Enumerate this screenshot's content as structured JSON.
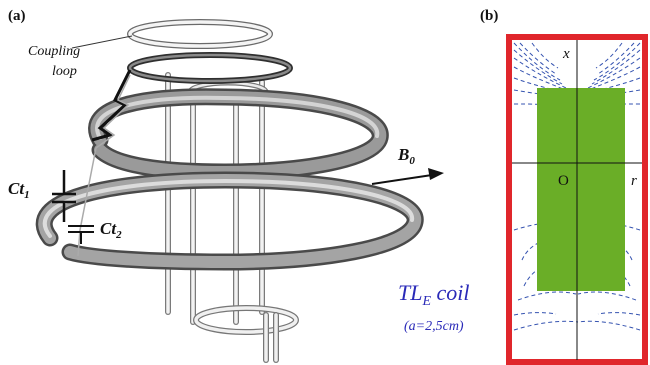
{
  "panel_a": {
    "label": "(a)",
    "coupling_loop_line1": "Coupling",
    "coupling_loop_line2": "loop",
    "b0_main": "B",
    "b0_sub": "0",
    "ct1_main": "Ct",
    "ct1_sub": "1",
    "ct2_main": "Ct",
    "ct2_sub": "2",
    "coil_title_main": "TL",
    "coil_title_sub": "E",
    "coil_title_rest": " coil",
    "coil_note": "(a=2,5cm)"
  },
  "panel_b": {
    "label": "(b)",
    "axis_x_label": "x",
    "axis_r_label": "r",
    "origin_label": "O"
  },
  "colors": {
    "frame_red": "#e0262b",
    "sample_green": "#6aae27",
    "field_lines_blue": "#3553b0",
    "coil_gray": "#8a8a8a",
    "title_blue": "#2a2ab8"
  }
}
